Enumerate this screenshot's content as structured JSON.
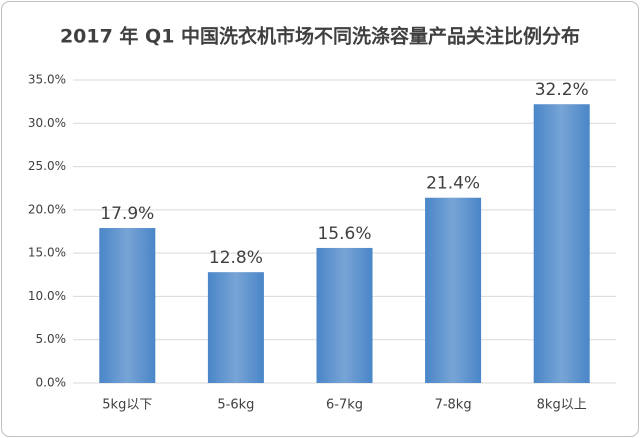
{
  "chart_data": {
    "type": "bar",
    "title": "2017 年 Q1 中国洗衣机市场不同洗涤容量产品关注比例分布",
    "categories": [
      "5kg以下",
      "5-6kg",
      "6-7kg",
      "7-8kg",
      "8kg以上"
    ],
    "values": [
      17.9,
      12.8,
      15.6,
      21.4,
      32.2
    ],
    "value_labels": [
      "17.9%",
      "12.8%",
      "15.6%",
      "21.4%",
      "32.2%"
    ],
    "color": "#4a86c8",
    "ylim": [
      0,
      35
    ],
    "yticks": [
      {
        "value": 0,
        "label": "0.0%"
      },
      {
        "value": 5,
        "label": "5.0%"
      },
      {
        "value": 10,
        "label": "10.0%"
      },
      {
        "value": 15,
        "label": "15.0%"
      },
      {
        "value": 20,
        "label": "20.0%"
      },
      {
        "value": 25,
        "label": "25.0%"
      },
      {
        "value": 30,
        "label": "30.0%"
      },
      {
        "value": 35,
        "label": "35.0%"
      }
    ],
    "grid": true
  }
}
